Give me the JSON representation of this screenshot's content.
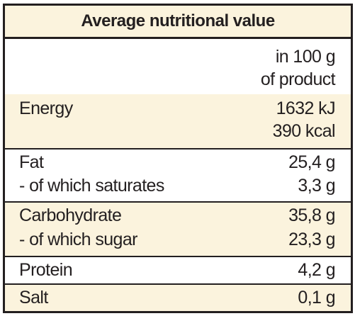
{
  "table": {
    "title": "Average nutritional value",
    "header": {
      "line1": "in 100 g",
      "line2": "of product"
    },
    "rows": [
      {
        "label1": "Energy",
        "value1": "1632 kJ",
        "value2": "390 kcal"
      },
      {
        "label1": "Fat",
        "value1": "25,4 g",
        "label2": "- of which saturates",
        "value2": "3,3 g"
      },
      {
        "label1": "Carbohydrate",
        "value1": "35,8 g",
        "label2": "- of which sugar",
        "value2": "23,3 g"
      },
      {
        "label1": "Protein",
        "value1": "4,2 g"
      },
      {
        "label1": "Salt",
        "value1": "0,1 g"
      }
    ]
  },
  "colors": {
    "shade": "#fbf3dd",
    "border": "#231f20",
    "text": "#231f20"
  }
}
